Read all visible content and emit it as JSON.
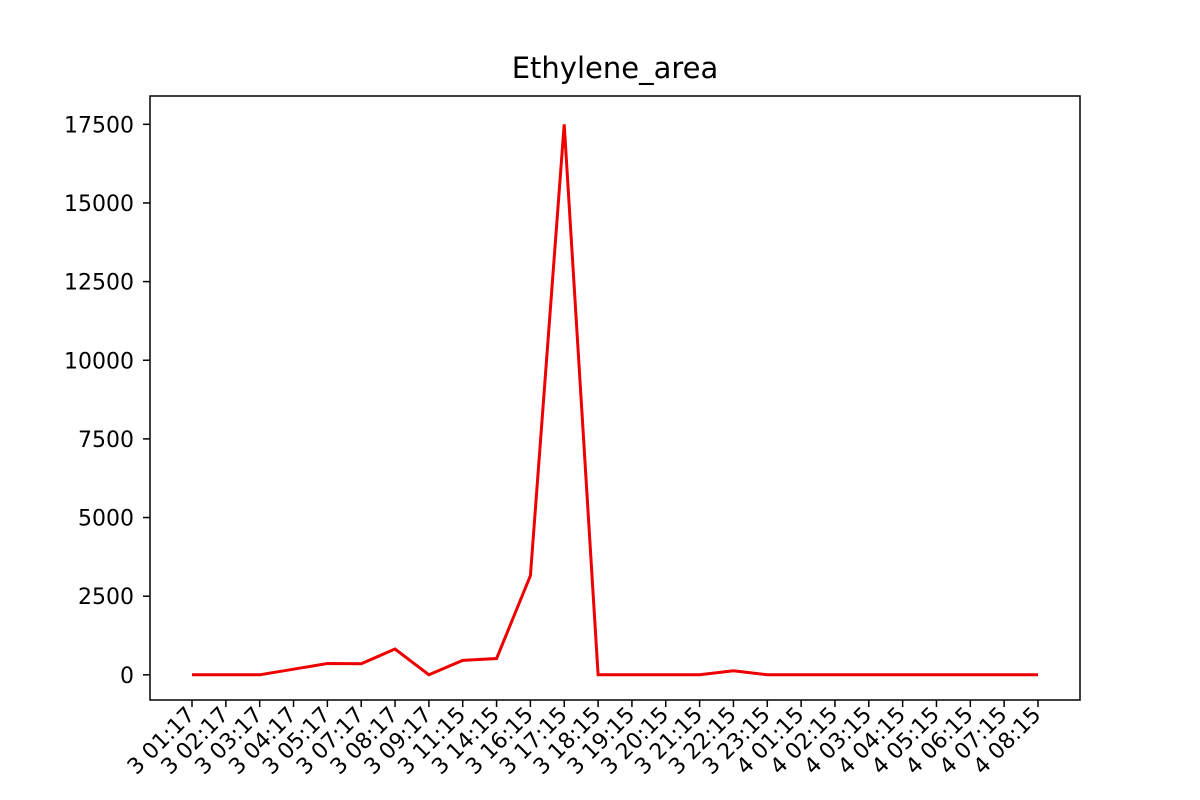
{
  "chart_data": {
    "type": "line",
    "title": "Ethylene_area",
    "xlabel": "",
    "ylabel": "",
    "x": [
      "3 01:17",
      "3 02:17",
      "3 03:17",
      "3 04:17",
      "3 05:17",
      "3 07:17",
      "3 08:17",
      "3 09:17",
      "3 11:15",
      "3 14:15",
      "3 16:15",
      "3 17:15",
      "3 18:15",
      "3 19:15",
      "3 20:15",
      "3 21:15",
      "3 22:15",
      "3 23:15",
      "4 01:15",
      "4 02:15",
      "4 03:15",
      "4 04:15",
      "4 05:15",
      "4 06:15",
      "4 07:15",
      "4 08:15"
    ],
    "series": [
      {
        "values": [
          0,
          0,
          0,
          180,
          360,
          350,
          820,
          0,
          460,
          520,
          3150,
          17500,
          0,
          0,
          0,
          0,
          130,
          0,
          0,
          0,
          0,
          0,
          0,
          0,
          0,
          0
        ]
      }
    ],
    "color": "#ee0000",
    "ylim": [
      -800,
      18400
    ],
    "yticks": [
      0,
      2500,
      5000,
      7500,
      10000,
      12500,
      15000,
      17500
    ],
    "grid": false,
    "legend": "none"
  }
}
